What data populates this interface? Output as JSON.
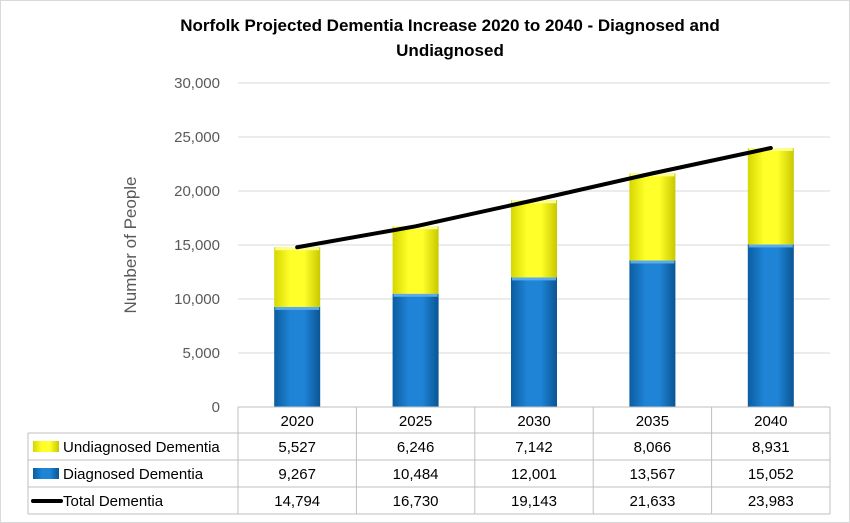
{
  "chart_data": {
    "type": "bar",
    "stacked": true,
    "title_line1": "Norfolk Projected Dementia Increase 2020 to 2040 - Diagnosed and",
    "title_line2": "Undiagnosed",
    "ylabel": "Number of People",
    "xlabel": "",
    "ylim": [
      0,
      30000
    ],
    "y_ticks": [
      "0",
      "5,000",
      "10,000",
      "15,000",
      "20,000",
      "25,000",
      "30,000"
    ],
    "categories": [
      "2020",
      "2025",
      "2030",
      "2035",
      "2040"
    ],
    "grid": true,
    "legend": "data-table",
    "series": [
      {
        "name": "Undiagnosed Dementia",
        "kind": "bar",
        "color": "#ffff00",
        "values": [
          5527,
          6246,
          7142,
          8066,
          8931
        ],
        "labels": [
          "5,527",
          "6,246",
          "7,142",
          "8,066",
          "8,931"
        ]
      },
      {
        "name": "Diagnosed Dementia",
        "kind": "bar",
        "color": "#0070c0",
        "values": [
          9267,
          10484,
          12001,
          13567,
          15052
        ],
        "labels": [
          "9,267",
          "10,484",
          "12,001",
          "13,567",
          "15,052"
        ]
      },
      {
        "name": "Total Dementia",
        "kind": "line",
        "color": "#000000",
        "values": [
          14794,
          16730,
          19143,
          21633,
          23983
        ],
        "labels": [
          "14,794",
          "16,730",
          "19,143",
          "21,633",
          "23,983"
        ]
      }
    ]
  }
}
